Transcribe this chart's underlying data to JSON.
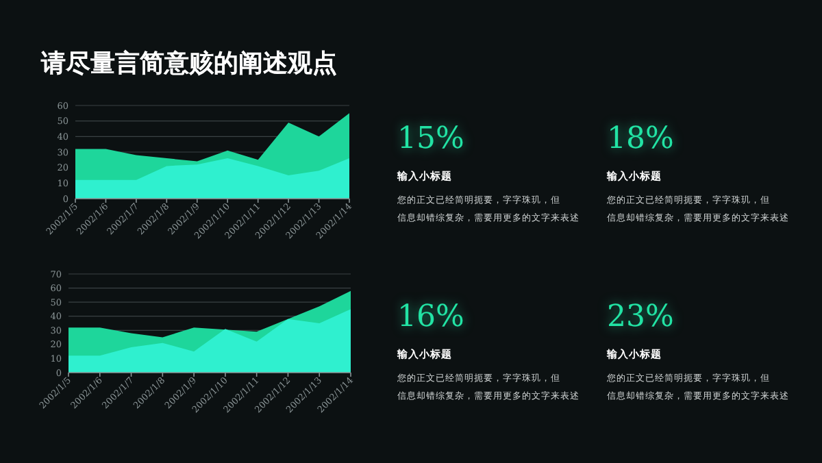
{
  "chart_data": [
    {
      "type": "area",
      "title": "请尽量言简意赅的阐述观点",
      "categories": [
        "2002/1/5",
        "2002/1/6",
        "2002/1/7",
        "2002/1/8",
        "2002/1/9",
        "2002/1/10",
        "2002/1/11",
        "2002/1/12",
        "2002/1/13",
        "2002/1/14"
      ],
      "series": [
        {
          "color": "#1ed69b",
          "values": [
            32,
            32,
            28,
            26,
            24,
            31,
            25,
            49,
            40,
            55
          ]
        },
        {
          "color": "#2ff0cf",
          "values": [
            12,
            12,
            12,
            21,
            22,
            26,
            21,
            15,
            18,
            26
          ]
        }
      ],
      "ylim": [
        0,
        60
      ],
      "yticks": [
        0,
        10,
        20,
        30,
        40,
        50,
        60
      ],
      "grid": "y"
    },
    {
      "type": "area",
      "categories": [
        "2002/1/5",
        "2002/1/6",
        "2002/1/7",
        "2002/1/8",
        "2002/1/9",
        "2002/1/10",
        "2002/1/11",
        "2002/1/12",
        "2002/1/13",
        "2002/1/14"
      ],
      "series": [
        {
          "color": "#1ed69b",
          "values": [
            32,
            32,
            28,
            25,
            32,
            null,
            29,
            38,
            47,
            58
          ]
        },
        {
          "color": "#2ff0cf",
          "values": [
            12,
            12,
            18,
            21,
            15,
            31,
            22,
            38,
            35,
            45
          ]
        }
      ],
      "ylim": [
        0,
        70
      ],
      "yticks": [
        0,
        10,
        20,
        30,
        40,
        50,
        60,
        70
      ],
      "grid": "y"
    },
    {
      "type": "other",
      "annotations": [
        "15%",
        "输入小标题",
        "您的正文已经简明扼要，字字珠玑，但信息却错综复杂，需要用更多的文字来表述",
        "18%",
        "输入小标题",
        "您的正文已经简明扼要，字字珠玑，但信息却错综复杂，需要用更多的文字来表述",
        "16%",
        "输入小标题",
        "您的正文已经简明扼要，字字珠玑，但信息却错综复杂，需要用更多的文字来表述",
        "23%",
        "输入小标题",
        "您的正文已经简明扼要，字字珠玑，但信息却错综复杂，需要用更多的文字来表述"
      ]
    }
  ]
}
